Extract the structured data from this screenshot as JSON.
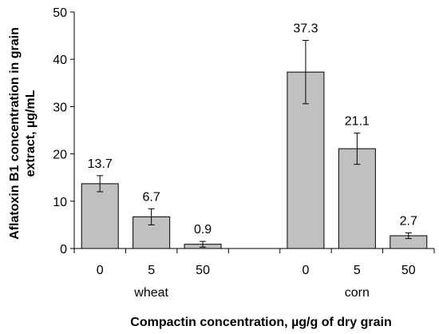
{
  "chart_data": {
    "type": "bar",
    "title": "",
    "xlabel": "Compactin concentration, µg/g of dry grain",
    "ylabel_line1": "Aflatoxin B1 concentration in grain",
    "ylabel_line2": "extract, µg/mL",
    "ylim": [
      0,
      50
    ],
    "yticks": [
      "0",
      "10",
      "20",
      "30",
      "40",
      "50"
    ],
    "groups": [
      {
        "label": "wheat",
        "bars": [
          {
            "category": "0",
            "value": 13.7,
            "error": 1.7,
            "label": "13.7"
          },
          {
            "category": "5",
            "value": 6.7,
            "error": 1.7,
            "label": "6.7"
          },
          {
            "category": "50",
            "value": 0.9,
            "error": 0.6,
            "label": "0.9"
          }
        ]
      },
      {
        "label": "corn",
        "bars": [
          {
            "category": "0",
            "value": 37.3,
            "error": 6.7,
            "label": "37.3"
          },
          {
            "category": "5",
            "value": 21.1,
            "error": 3.3,
            "label": "21.1"
          },
          {
            "category": "50",
            "value": 2.7,
            "error": 0.6,
            "label": "2.7"
          }
        ]
      }
    ],
    "bar_color": "#c0c0c0",
    "grid": false,
    "legend": "none"
  }
}
